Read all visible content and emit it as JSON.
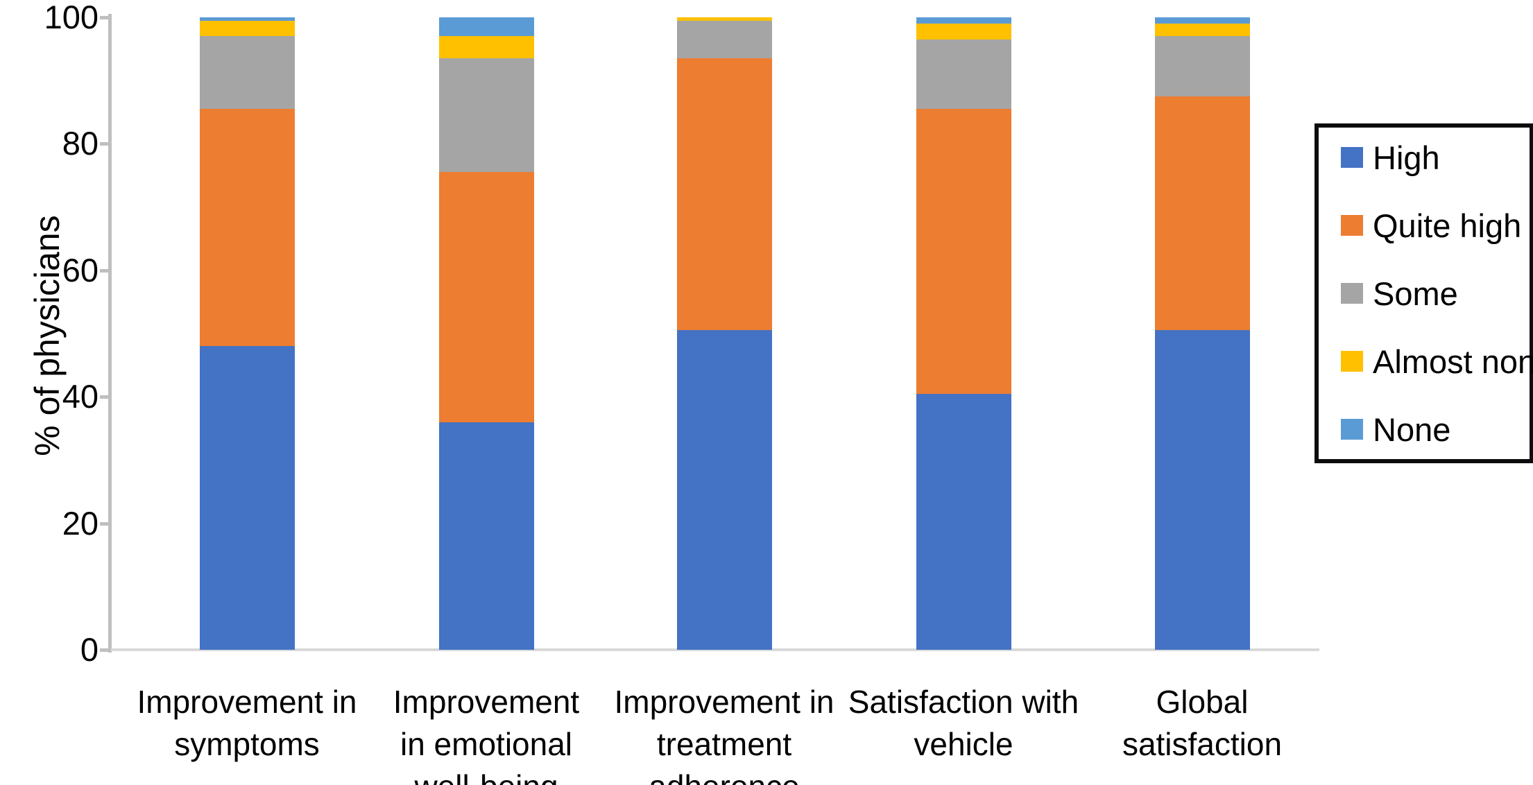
{
  "chart_data": {
    "type": "bar",
    "stacked": true,
    "title": "",
    "xlabel": "",
    "ylabel": "% of physicians",
    "ylim": [
      0,
      100
    ],
    "yticks": [
      0,
      20,
      40,
      60,
      80,
      100
    ],
    "grid": false,
    "legend_position": "right",
    "categories": [
      "Improvement in symptoms",
      "Improvement in emotional well-being",
      "Improvement in treatment adherence",
      "Satisfaction with vehicle",
      "Global satisfaction"
    ],
    "category_label_lines": [
      "Improvement in\nsymptoms",
      "Improvement\nin emotional\nwell-being",
      "Improvement in\ntreatment\nadherence",
      "Satisfaction with\nvehicle",
      "Global\nsatisfaction"
    ],
    "series": [
      {
        "name": "High",
        "color": "#4472C4",
        "values": [
          48.0,
          36.0,
          50.5,
          40.5,
          50.5
        ]
      },
      {
        "name": "Quite high",
        "color": "#ED7D31",
        "values": [
          37.5,
          39.5,
          43.0,
          45.0,
          37.0
        ]
      },
      {
        "name": "Some",
        "color": "#A5A5A5",
        "values": [
          11.5,
          18.0,
          6.0,
          11.0,
          9.5
        ]
      },
      {
        "name": "Almost none",
        "color": "#FFC000",
        "values": [
          2.5,
          3.5,
          0.5,
          2.5,
          2.0
        ]
      },
      {
        "name": "None",
        "color": "#5B9BD5",
        "values": [
          0.5,
          3.0,
          0.0,
          1.0,
          1.0
        ]
      }
    ],
    "colors": {
      "axis": "#BFBFBF",
      "baseline": "#D9D9D9",
      "legend_border": "#0D0D0D",
      "text": "#000000"
    }
  }
}
